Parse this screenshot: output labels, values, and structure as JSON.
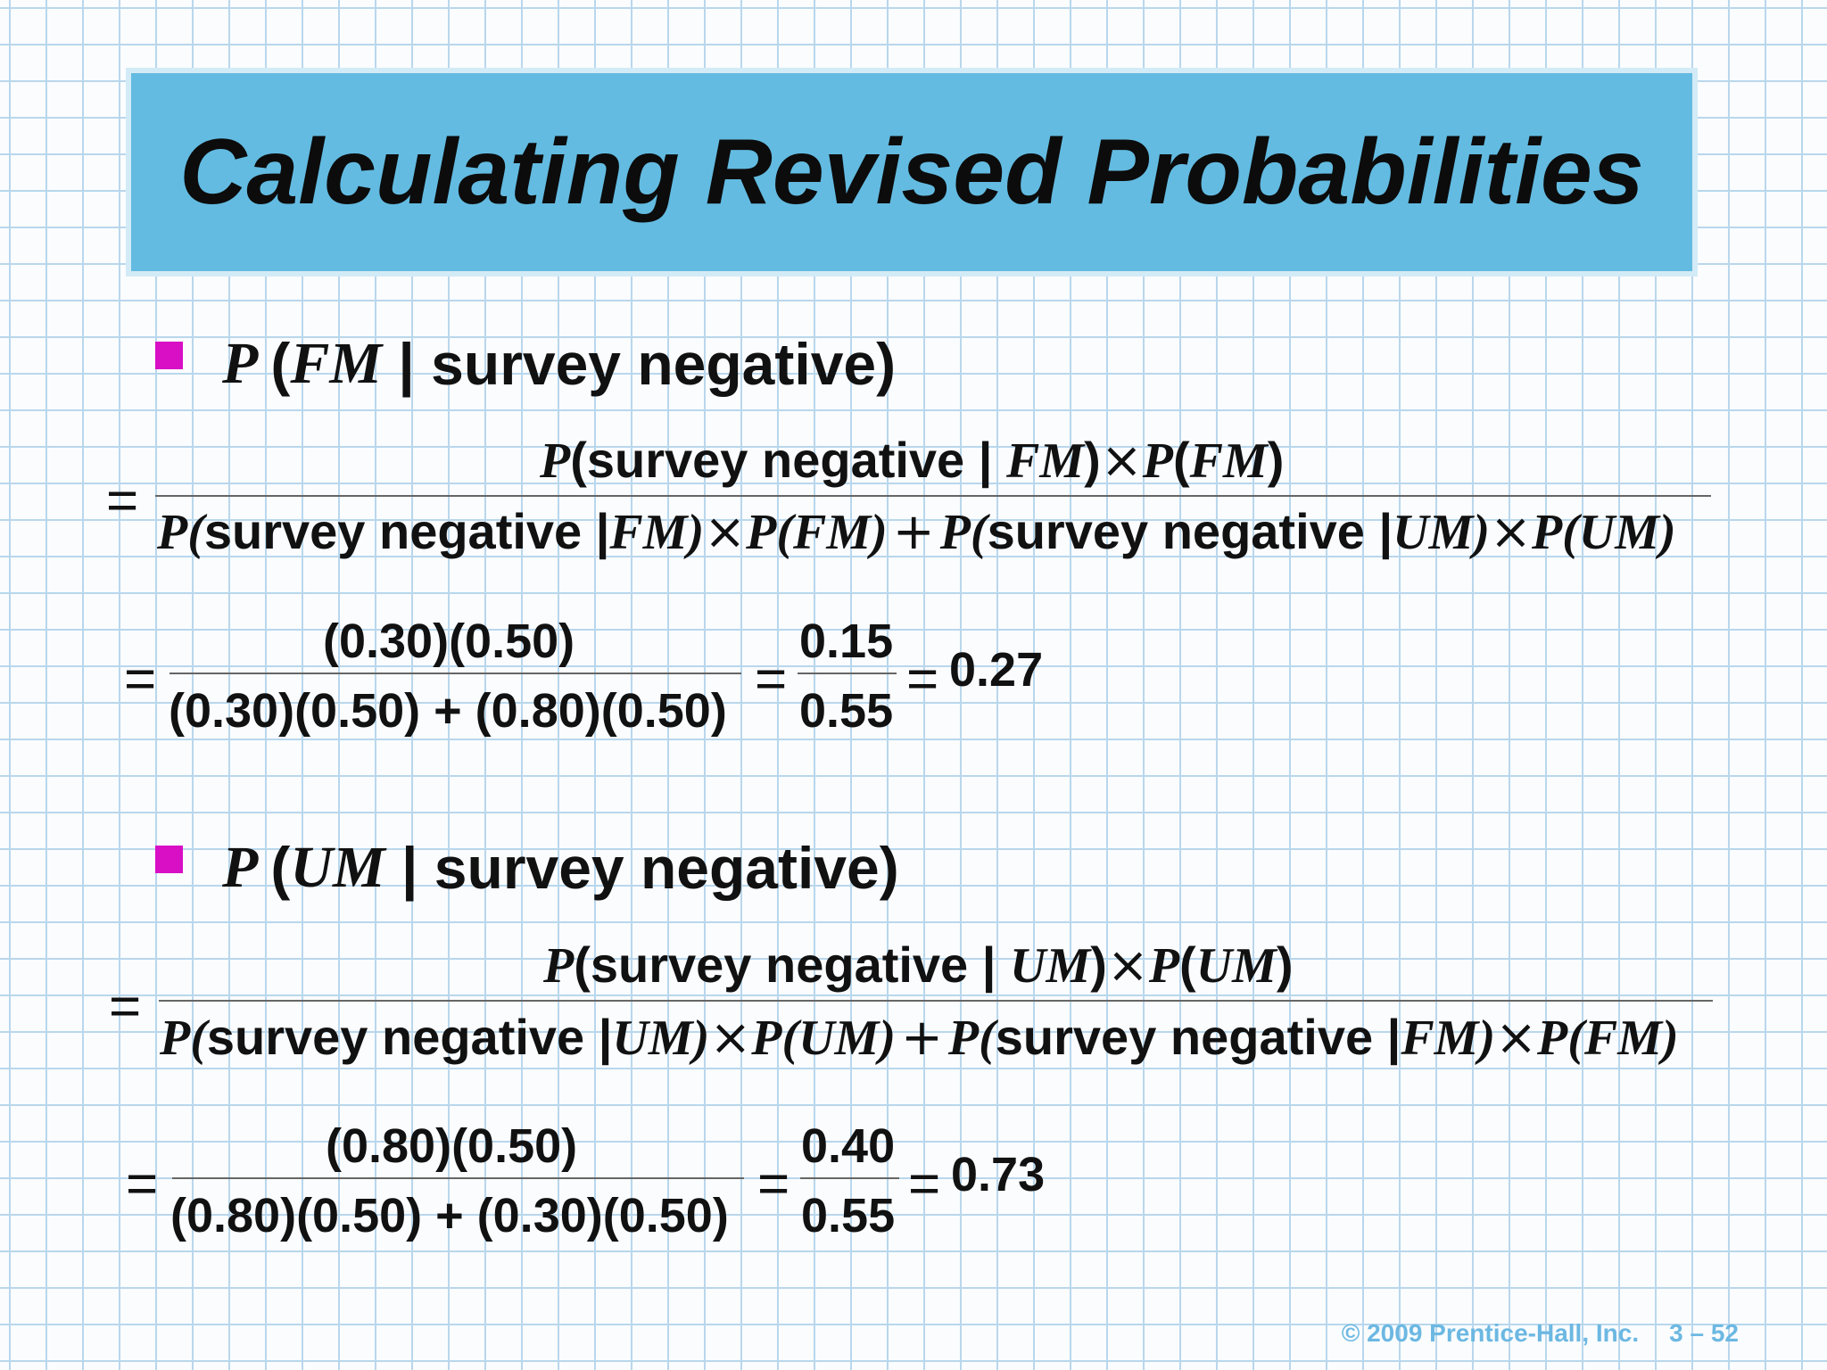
{
  "title": "Calculating Revised Probabilities",
  "section1": {
    "heading": {
      "p": "P",
      "open": "(",
      "var": "FM",
      "rest": " | survey negative)"
    },
    "eq": "=",
    "numerator": {
      "p1": "P",
      "t1": "(survey negative | ",
      "v1": "FM",
      "t2": ")",
      "times": "×",
      "p2": "P",
      "t3": "(",
      "v2": "FM",
      "t4": ")"
    },
    "denominator": {
      "p1": "P(",
      "t1": "survey negative |",
      "v1": "FM)",
      "times1": "×",
      "p2": "P(FM)",
      "plus": "+",
      "p3": "P(",
      "t2": "survey negative |",
      "v2": "UM)",
      "times2": "×",
      "p4": "P(UM)"
    },
    "calc": {
      "eq1": "=",
      "num": "(0.30)(0.50)",
      "den": "(0.30)(0.50) + (0.80)(0.50)",
      "eq2": "=",
      "num2": "0.15",
      "den2": "0.55",
      "eq3": "=",
      "result": "0.27"
    }
  },
  "section2": {
    "heading": {
      "p": "P",
      "open": "(",
      "var": "UM",
      "rest": " | survey negative)"
    },
    "eq": "=",
    "numerator": {
      "p1": "P",
      "t1": "(survey negative | ",
      "v1": "UM",
      "t2": ")",
      "times": "×",
      "p2": "P",
      "t3": "(",
      "v2": "UM",
      "t4": ")"
    },
    "denominator": {
      "p1": "P(",
      "t1": "survey negative |",
      "v1": "UM)",
      "times1": "×",
      "p2": "P(UM)",
      "plus": "+",
      "p3": "P(",
      "t2": "survey negative |",
      "v2": "FM)",
      "times2": "×",
      "p4": "P(FM)"
    },
    "calc": {
      "eq1": "=",
      "num": "(0.80)(0.50)",
      "den": "(0.80)(0.50) + (0.30)(0.50)",
      "eq2": "=",
      "num2": "0.40",
      "den2": "0.55",
      "eq3": "=",
      "result": "0.73"
    }
  },
  "footer": {
    "copyright": "© 2009 Prentice-Hall, Inc.",
    "page": "3 – 52"
  }
}
